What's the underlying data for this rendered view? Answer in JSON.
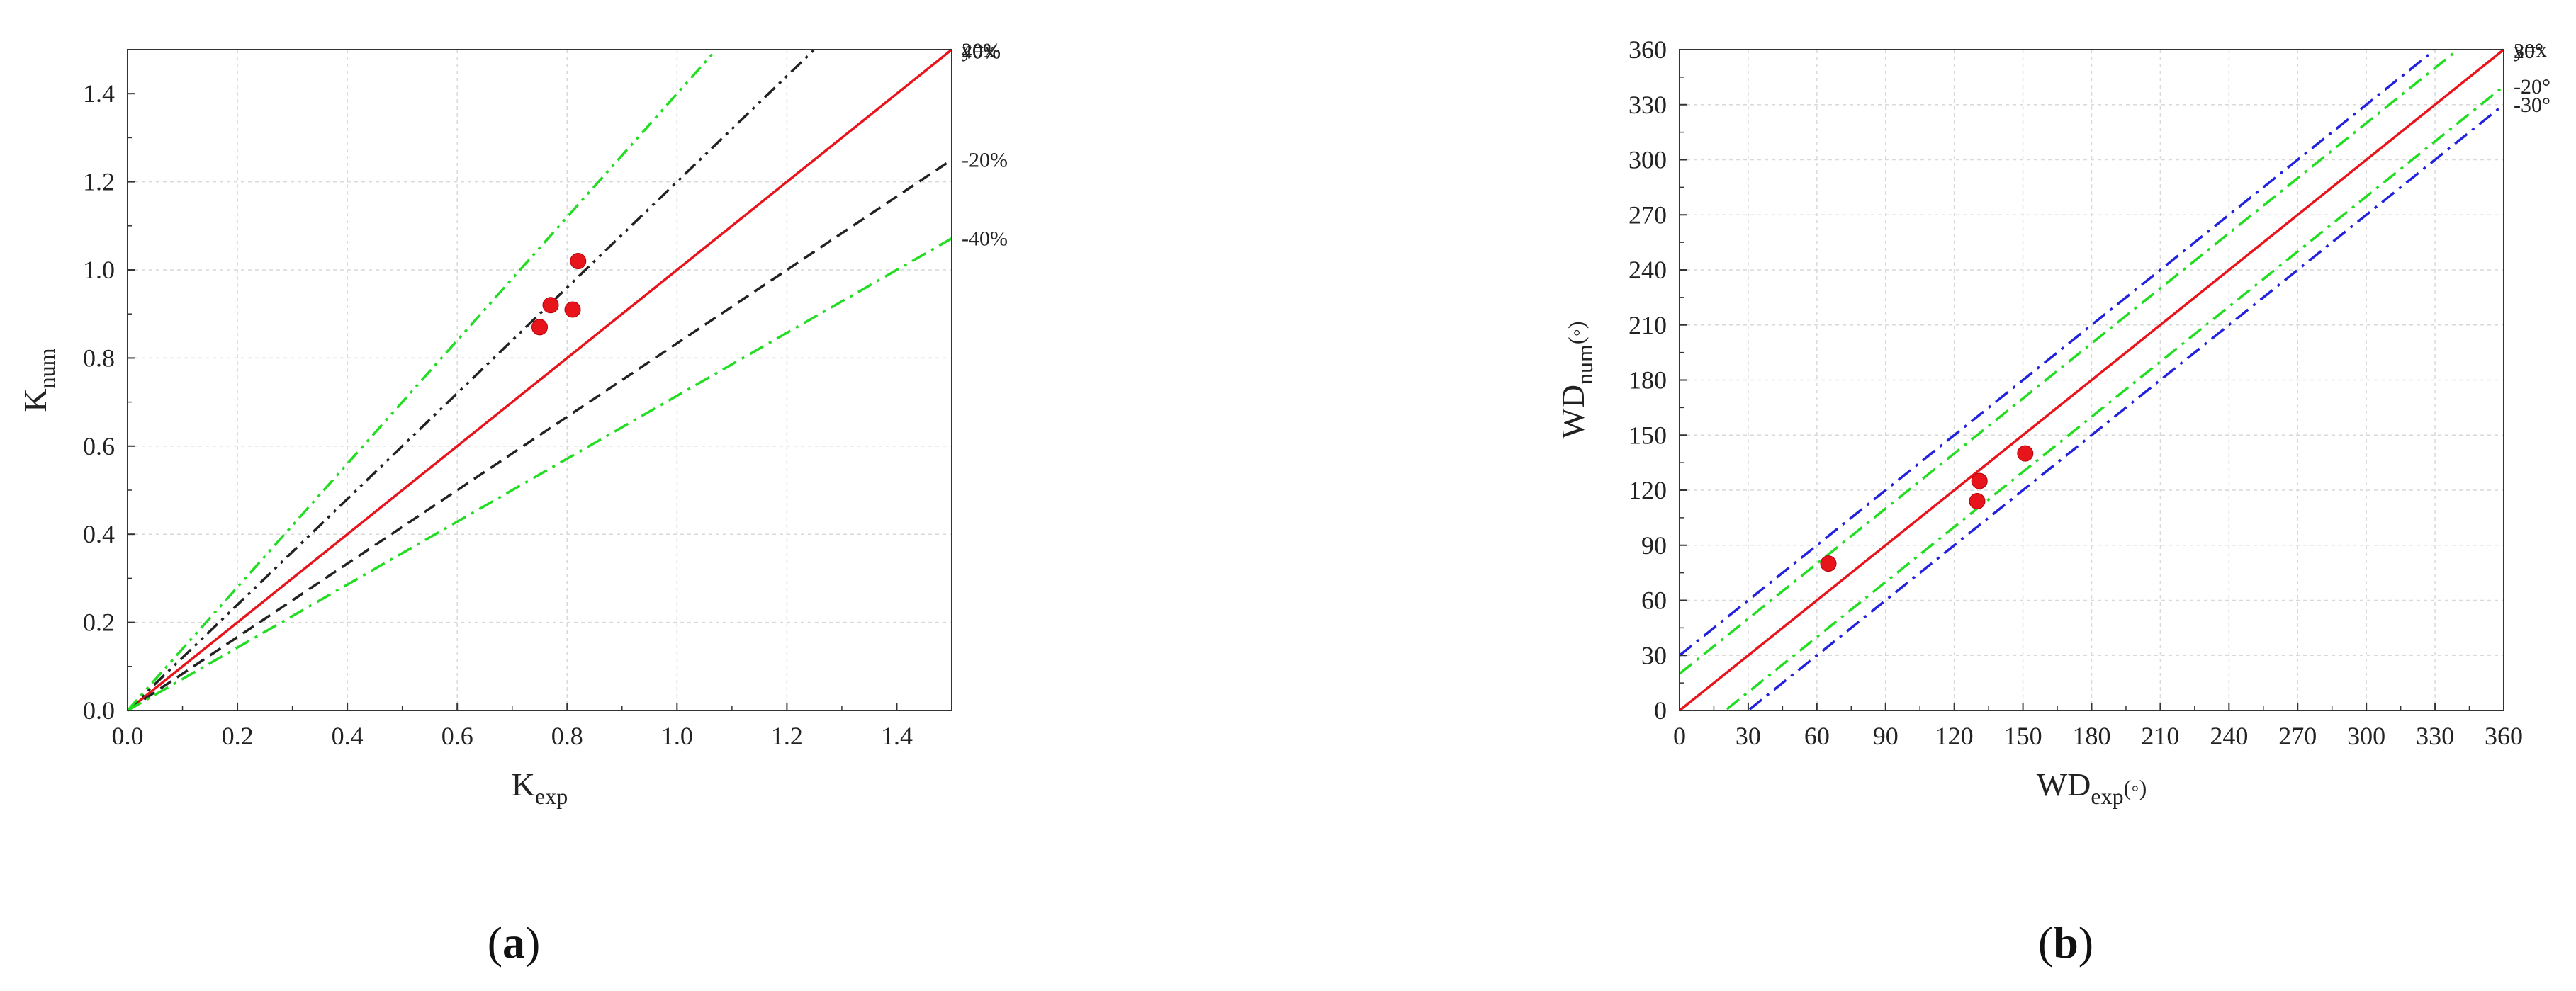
{
  "chart_data": [
    {
      "type": "scatter",
      "panel_label": "a",
      "xlabel": {
        "main": "K",
        "sub": "exp"
      },
      "ylabel": {
        "main": "K",
        "sub": "num"
      },
      "xlim": [
        0,
        1.5
      ],
      "ylim": [
        0,
        1.5
      ],
      "xticks": [
        0.0,
        0.2,
        0.4,
        0.6,
        0.8,
        1.0,
        1.2,
        1.4
      ],
      "yticks": [
        0.0,
        0.2,
        0.4,
        0.6,
        0.8,
        1.0,
        1.2,
        1.4
      ],
      "xtick_labels": [
        "0.0",
        "0.2",
        "0.4",
        "0.6",
        "0.8",
        "1.0",
        "1.2",
        "1.4"
      ],
      "ytick_labels": [
        "0.0",
        "0.2",
        "0.4",
        "0.6",
        "0.8",
        "1.0",
        "1.2",
        "1.4"
      ],
      "grid": true,
      "points": [
        {
          "x": 0.75,
          "y": 0.87
        },
        {
          "x": 0.77,
          "y": 0.92
        },
        {
          "x": 0.81,
          "y": 0.91
        },
        {
          "x": 0.82,
          "y": 1.02
        }
      ],
      "point_color": "#e8141c",
      "reference_lines": [
        {
          "label": "y=x",
          "slope": 1.0,
          "color": "#e8141c",
          "dash": "solid"
        },
        {
          "label": "20%",
          "slope": 1.2,
          "color": "#222222",
          "dash": "dashdotdot"
        },
        {
          "label": "-20%",
          "slope": 0.8333,
          "color": "#222222",
          "dash": "dashed"
        },
        {
          "label": "40%",
          "slope": 1.4,
          "color": "#22dd22",
          "dash": "dashdotdot"
        },
        {
          "label": "-40%",
          "slope": 0.7143,
          "color": "#22dd22",
          "dash": "dashdot"
        }
      ]
    },
    {
      "type": "scatter",
      "panel_label": "b",
      "xlabel": {
        "main": "WD",
        "sub": "exp",
        "unit": "(◦)"
      },
      "ylabel": {
        "main": "WD",
        "sub": "num",
        "unit": "(◦)"
      },
      "xlim": [
        0,
        360
      ],
      "ylim": [
        0,
        360
      ],
      "xticks": [
        0,
        30,
        60,
        90,
        120,
        150,
        180,
        210,
        240,
        270,
        300,
        330,
        360
      ],
      "yticks": [
        0,
        30,
        60,
        90,
        120,
        150,
        180,
        210,
        240,
        270,
        300,
        330,
        360
      ],
      "xtick_labels": [
        "0",
        "30",
        "60",
        "90",
        "120",
        "150",
        "180",
        "210",
        "240",
        "270",
        "300",
        "330",
        "360"
      ],
      "ytick_labels": [
        "0",
        "30",
        "60",
        "90",
        "120",
        "150",
        "180",
        "210",
        "240",
        "270",
        "300",
        "330",
        "360"
      ],
      "grid": true,
      "points": [
        {
          "x": 65,
          "y": 80
        },
        {
          "x": 130,
          "y": 114
        },
        {
          "x": 131,
          "y": 125
        },
        {
          "x": 151,
          "y": 140
        }
      ],
      "point_color": "#e8141c",
      "reference_lines": [
        {
          "label": "y=x",
          "offset": 0,
          "color": "#e8141c",
          "dash": "solid"
        },
        {
          "label": "20°",
          "offset": 20,
          "color": "#22dd22",
          "dash": "dashdot"
        },
        {
          "label": "-20°",
          "offset": -20,
          "color": "#22dd22",
          "dash": "dashdot"
        },
        {
          "label": "30°",
          "offset": 30,
          "color": "#2222dd",
          "dash": "dashdot"
        },
        {
          "label": "-30°",
          "offset": -30,
          "color": "#2222dd",
          "dash": "dashdot"
        }
      ]
    }
  ]
}
